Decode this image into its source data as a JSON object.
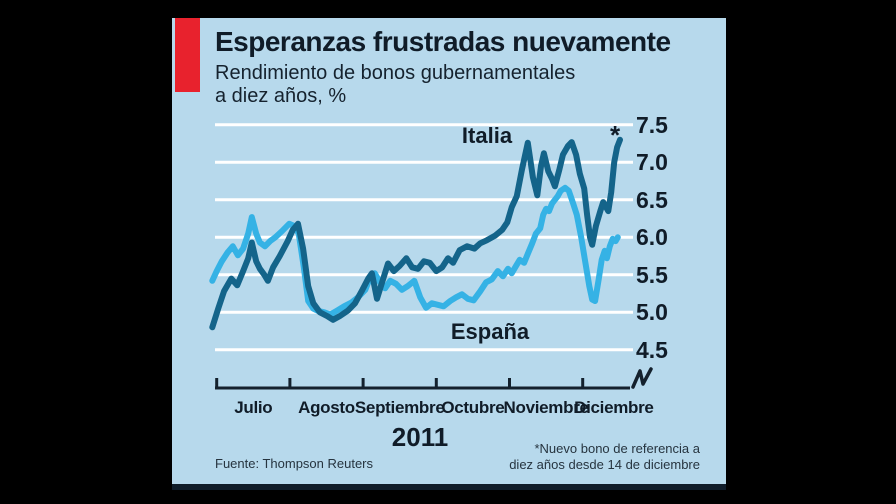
{
  "panel": {
    "title": "Esperanzas frustradas nuevamente",
    "subtitle_line1": "Rendimiento de bonos gubernamentales",
    "subtitle_line2": "a diez años, %"
  },
  "chart_data": {
    "type": "line",
    "title": "Esperanzas frustradas nuevamente",
    "subtitle": "Rendimiento de bonos gubernamentales a diez años, %",
    "x_axis": {
      "months": [
        "Julio",
        "Agosto",
        "Septiembre",
        "Octubre",
        "Noviembre",
        "Diciembre"
      ],
      "year": "2011"
    },
    "y_axis": {
      "ticks": [
        "7.5",
        "7.0",
        "6.5",
        "6.0",
        "5.5",
        "5.0",
        "4.5"
      ],
      "position": "right"
    },
    "ylim": [
      4.5,
      7.5
    ],
    "grid": "horizontal-white",
    "axis_break_marker": true,
    "annotations": {
      "asterisk": "*"
    },
    "series": [
      {
        "name": "Italia",
        "color": "#14648a",
        "points": [
          [
            -0.06,
            4.8
          ],
          [
            0.02,
            5.05
          ],
          [
            0.1,
            5.28
          ],
          [
            0.2,
            5.45
          ],
          [
            0.28,
            5.36
          ],
          [
            0.36,
            5.55
          ],
          [
            0.43,
            5.72
          ],
          [
            0.48,
            5.93
          ],
          [
            0.54,
            5.68
          ],
          [
            0.59,
            5.58
          ],
          [
            0.65,
            5.5
          ],
          [
            0.7,
            5.42
          ],
          [
            0.77,
            5.6
          ],
          [
            0.86,
            5.75
          ],
          [
            0.97,
            5.95
          ],
          [
            1.04,
            6.1
          ],
          [
            1.11,
            6.18
          ],
          [
            1.18,
            5.85
          ],
          [
            1.25,
            5.35
          ],
          [
            1.32,
            5.12
          ],
          [
            1.41,
            5.0
          ],
          [
            1.51,
            4.95
          ],
          [
            1.59,
            4.9
          ],
          [
            1.68,
            4.95
          ],
          [
            1.79,
            5.02
          ],
          [
            1.89,
            5.12
          ],
          [
            1.99,
            5.3
          ],
          [
            2.07,
            5.45
          ],
          [
            2.12,
            5.52
          ],
          [
            2.19,
            5.18
          ],
          [
            2.26,
            5.4
          ],
          [
            2.34,
            5.65
          ],
          [
            2.42,
            5.55
          ],
          [
            2.5,
            5.62
          ],
          [
            2.59,
            5.72
          ],
          [
            2.67,
            5.6
          ],
          [
            2.75,
            5.58
          ],
          [
            2.83,
            5.68
          ],
          [
            2.91,
            5.66
          ],
          [
            3.0,
            5.55
          ],
          [
            3.08,
            5.6
          ],
          [
            3.16,
            5.72
          ],
          [
            3.23,
            5.66
          ],
          [
            3.32,
            5.83
          ],
          [
            3.42,
            5.88
          ],
          [
            3.52,
            5.85
          ],
          [
            3.6,
            5.92
          ],
          [
            3.69,
            5.96
          ],
          [
            3.8,
            6.02
          ],
          [
            3.9,
            6.1
          ],
          [
            3.97,
            6.2
          ],
          [
            4.03,
            6.4
          ],
          [
            4.1,
            6.55
          ],
          [
            4.17,
            6.9
          ],
          [
            4.25,
            7.26
          ],
          [
            4.32,
            6.8
          ],
          [
            4.38,
            6.56
          ],
          [
            4.43,
            6.95
          ],
          [
            4.47,
            7.12
          ],
          [
            4.53,
            6.88
          ],
          [
            4.58,
            6.78
          ],
          [
            4.62,
            6.68
          ],
          [
            4.68,
            6.9
          ],
          [
            4.73,
            7.1
          ],
          [
            4.8,
            7.22
          ],
          [
            4.85,
            7.27
          ],
          [
            4.91,
            7.1
          ],
          [
            4.96,
            6.85
          ],
          [
            5.02,
            6.65
          ],
          [
            5.06,
            6.3
          ],
          [
            5.1,
            6.0
          ],
          [
            5.13,
            5.9
          ],
          [
            5.18,
            6.15
          ],
          [
            5.24,
            6.35
          ],
          [
            5.28,
            6.47
          ],
          [
            5.32,
            6.4
          ],
          [
            5.35,
            6.35
          ],
          [
            5.39,
            6.6
          ],
          [
            5.43,
            7.0
          ],
          [
            5.47,
            7.2
          ],
          [
            5.51,
            7.3
          ]
        ]
      },
      {
        "name": "España",
        "color": "#35b2e5",
        "points": [
          [
            -0.06,
            5.42
          ],
          [
            0.0,
            5.55
          ],
          [
            0.07,
            5.68
          ],
          [
            0.15,
            5.8
          ],
          [
            0.22,
            5.88
          ],
          [
            0.29,
            5.76
          ],
          [
            0.36,
            5.85
          ],
          [
            0.43,
            6.05
          ],
          [
            0.48,
            6.27
          ],
          [
            0.54,
            6.05
          ],
          [
            0.59,
            5.93
          ],
          [
            0.66,
            5.88
          ],
          [
            0.73,
            5.95
          ],
          [
            0.8,
            6.0
          ],
          [
            0.89,
            6.08
          ],
          [
            0.99,
            6.18
          ],
          [
            1.06,
            6.15
          ],
          [
            1.12,
            6.05
          ],
          [
            1.19,
            5.6
          ],
          [
            1.25,
            5.15
          ],
          [
            1.32,
            5.05
          ],
          [
            1.38,
            5.02
          ],
          [
            1.47,
            5.0
          ],
          [
            1.55,
            4.97
          ],
          [
            1.64,
            5.02
          ],
          [
            1.74,
            5.08
          ],
          [
            1.84,
            5.13
          ],
          [
            1.93,
            5.2
          ],
          [
            2.03,
            5.3
          ],
          [
            2.09,
            5.45
          ],
          [
            2.16,
            5.52
          ],
          [
            2.23,
            5.4
          ],
          [
            2.3,
            5.32
          ],
          [
            2.37,
            5.42
          ],
          [
            2.45,
            5.38
          ],
          [
            2.53,
            5.3
          ],
          [
            2.61,
            5.35
          ],
          [
            2.7,
            5.42
          ],
          [
            2.78,
            5.2
          ],
          [
            2.86,
            5.06
          ],
          [
            2.94,
            5.12
          ],
          [
            3.02,
            5.1
          ],
          [
            3.1,
            5.08
          ],
          [
            3.19,
            5.15
          ],
          [
            3.27,
            5.2
          ],
          [
            3.35,
            5.24
          ],
          [
            3.43,
            5.18
          ],
          [
            3.51,
            5.16
          ],
          [
            3.6,
            5.28
          ],
          [
            3.68,
            5.4
          ],
          [
            3.76,
            5.44
          ],
          [
            3.84,
            5.55
          ],
          [
            3.91,
            5.48
          ],
          [
            3.98,
            5.58
          ],
          [
            4.03,
            5.52
          ],
          [
            4.09,
            5.62
          ],
          [
            4.14,
            5.7
          ],
          [
            4.2,
            5.66
          ],
          [
            4.25,
            5.78
          ],
          [
            4.31,
            5.92
          ],
          [
            4.36,
            6.05
          ],
          [
            4.42,
            6.12
          ],
          [
            4.46,
            6.3
          ],
          [
            4.5,
            6.38
          ],
          [
            4.54,
            6.35
          ],
          [
            4.58,
            6.45
          ],
          [
            4.62,
            6.5
          ],
          [
            4.66,
            6.55
          ],
          [
            4.7,
            6.62
          ],
          [
            4.76,
            6.66
          ],
          [
            4.81,
            6.62
          ],
          [
            4.87,
            6.45
          ],
          [
            4.92,
            6.3
          ],
          [
            4.98,
            6.0
          ],
          [
            5.03,
            5.7
          ],
          [
            5.09,
            5.35
          ],
          [
            5.13,
            5.17
          ],
          [
            5.17,
            5.15
          ],
          [
            5.22,
            5.45
          ],
          [
            5.26,
            5.7
          ],
          [
            5.3,
            5.82
          ],
          [
            5.33,
            5.72
          ],
          [
            5.37,
            5.88
          ],
          [
            5.41,
            5.98
          ],
          [
            5.45,
            5.95
          ],
          [
            5.48,
            6.0
          ]
        ]
      }
    ]
  },
  "footer": {
    "source": "Fuente: Thompson Reuters",
    "note_line1": "*Nuevo bono de referencia a",
    "note_line2": "diez años desde 14 de diciembre"
  },
  "colors": {
    "background": "#000000",
    "panel_bg": "#b7d9ec",
    "accent_red": "#e8222d",
    "text_dark": "#101c28",
    "gridline": "#ffffff",
    "italia_line": "#14648a",
    "espana_line": "#35b2e5",
    "bottom_strip": "#0f1c29"
  }
}
